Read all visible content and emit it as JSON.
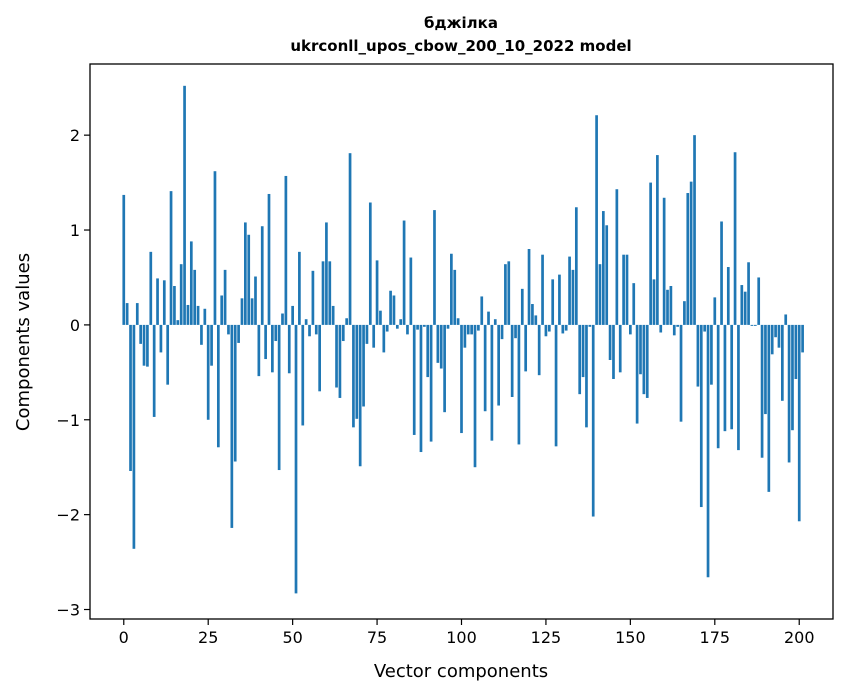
{
  "chart_data": {
    "type": "bar",
    "title": "бджілка",
    "subtitle": "ukrconll_upos_cbow_200_10_2022 model",
    "xlabel": "Vector components",
    "ylabel": "Components values",
    "xlim": [
      -10,
      210
    ],
    "ylim": [
      -3.1,
      2.75
    ],
    "xticks": [
      0,
      25,
      50,
      75,
      100,
      125,
      150,
      175,
      200
    ],
    "yticks": [
      -3,
      -2,
      -1,
      0,
      1,
      2
    ],
    "xtick_labels": [
      "0",
      "25",
      "50",
      "75",
      "100",
      "125",
      "150",
      "175",
      "200"
    ],
    "ytick_labels": [
      "−3",
      "−2",
      "−1",
      "0",
      "1",
      "2"
    ],
    "grid": false,
    "bar_color": "#1f77b4",
    "values": [
      1.37,
      0.23,
      -1.54,
      -2.36,
      0.23,
      -0.2,
      -0.43,
      -0.44,
      0.77,
      -0.97,
      0.49,
      -0.29,
      0.47,
      -0.63,
      1.41,
      0.41,
      0.05,
      0.64,
      2.52,
      0.21,
      0.88,
      0.58,
      0.2,
      -0.21,
      0.17,
      -1.0,
      -0.43,
      1.62,
      -1.29,
      0.31,
      0.58,
      -0.1,
      -2.14,
      -1.44,
      -0.19,
      0.28,
      1.08,
      0.95,
      0.28,
      0.51,
      -0.54,
      1.04,
      -0.36,
      1.38,
      -0.5,
      -0.17,
      -1.53,
      0.12,
      1.57,
      -0.51,
      0.2,
      -2.83,
      0.77,
      -1.06,
      0.06,
      -0.12,
      0.57,
      -0.1,
      -0.7,
      0.67,
      1.08,
      0.67,
      0.2,
      -0.66,
      -0.77,
      -0.17,
      0.07,
      1.81,
      -1.08,
      -0.99,
      -1.49,
      -0.86,
      -0.2,
      1.29,
      -0.24,
      0.68,
      0.15,
      -0.29,
      -0.07,
      0.36,
      0.31,
      -0.04,
      0.06,
      1.1,
      -0.1,
      0.71,
      -1.16,
      -0.05,
      -1.34,
      -0.02,
      -0.55,
      -1.23,
      1.21,
      -0.4,
      -0.46,
      -0.92,
      -0.04,
      0.75,
      0.58,
      0.07,
      -1.14,
      -0.24,
      -0.1,
      -0.1,
      -1.5,
      -0.06,
      0.3,
      -0.91,
      0.14,
      -1.22,
      0.06,
      -0.85,
      -0.15,
      0.64,
      0.67,
      -0.76,
      -0.14,
      -1.26,
      0.38,
      -0.49,
      0.8,
      0.22,
      0.1,
      -0.53,
      0.74,
      -0.12,
      -0.07,
      0.48,
      -1.28,
      0.53,
      -0.09,
      -0.06,
      0.72,
      0.58,
      1.24,
      -0.73,
      -0.55,
      -1.08,
      -0.02,
      -2.02,
      2.21,
      0.64,
      1.2,
      1.05,
      -0.37,
      -0.57,
      1.43,
      -0.5,
      0.74,
      0.74,
      -0.1,
      0.44,
      -1.04,
      -0.52,
      -0.73,
      -0.77,
      1.5,
      0.48,
      1.79,
      -0.08,
      1.34,
      0.37,
      0.41,
      -0.11,
      -0.02,
      -1.02,
      0.25,
      1.39,
      1.51,
      2.0,
      -0.65,
      -1.92,
      -0.07,
      -2.66,
      -0.63,
      0.29,
      -1.3,
      1.09,
      -1.12,
      0.61,
      -1.1,
      1.82,
      -1.32,
      0.42,
      0.35,
      0.66,
      -0.01,
      -0.01,
      0.5,
      -1.4,
      -0.94,
      -1.76,
      -0.31,
      -0.13,
      -0.24,
      -0.8,
      0.11,
      -1.45,
      -1.11,
      -0.57,
      -2.07,
      -0.29
    ]
  }
}
